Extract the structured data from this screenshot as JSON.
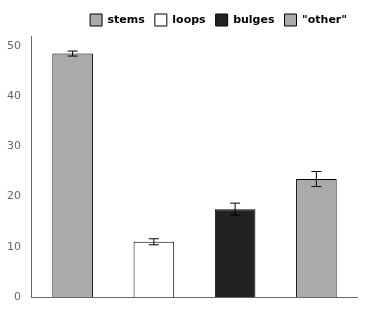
{
  "chart_data": {
    "type": "bar",
    "categories": [
      "stems",
      "loops",
      "bulges",
      "\"other\""
    ],
    "values": [
      48.5,
      11.0,
      17.5,
      23.5
    ],
    "errors": [
      0.5,
      0.6,
      1.2,
      1.5
    ],
    "colors": [
      "#aaaaaa",
      "#ffffff",
      "#222222",
      "#aaaaaa"
    ],
    "ylim": [
      0,
      52
    ],
    "yticks": [
      0,
      10,
      20,
      30,
      40,
      50
    ],
    "grid": false,
    "legend": "upper right",
    "tick_labels": "y"
  }
}
